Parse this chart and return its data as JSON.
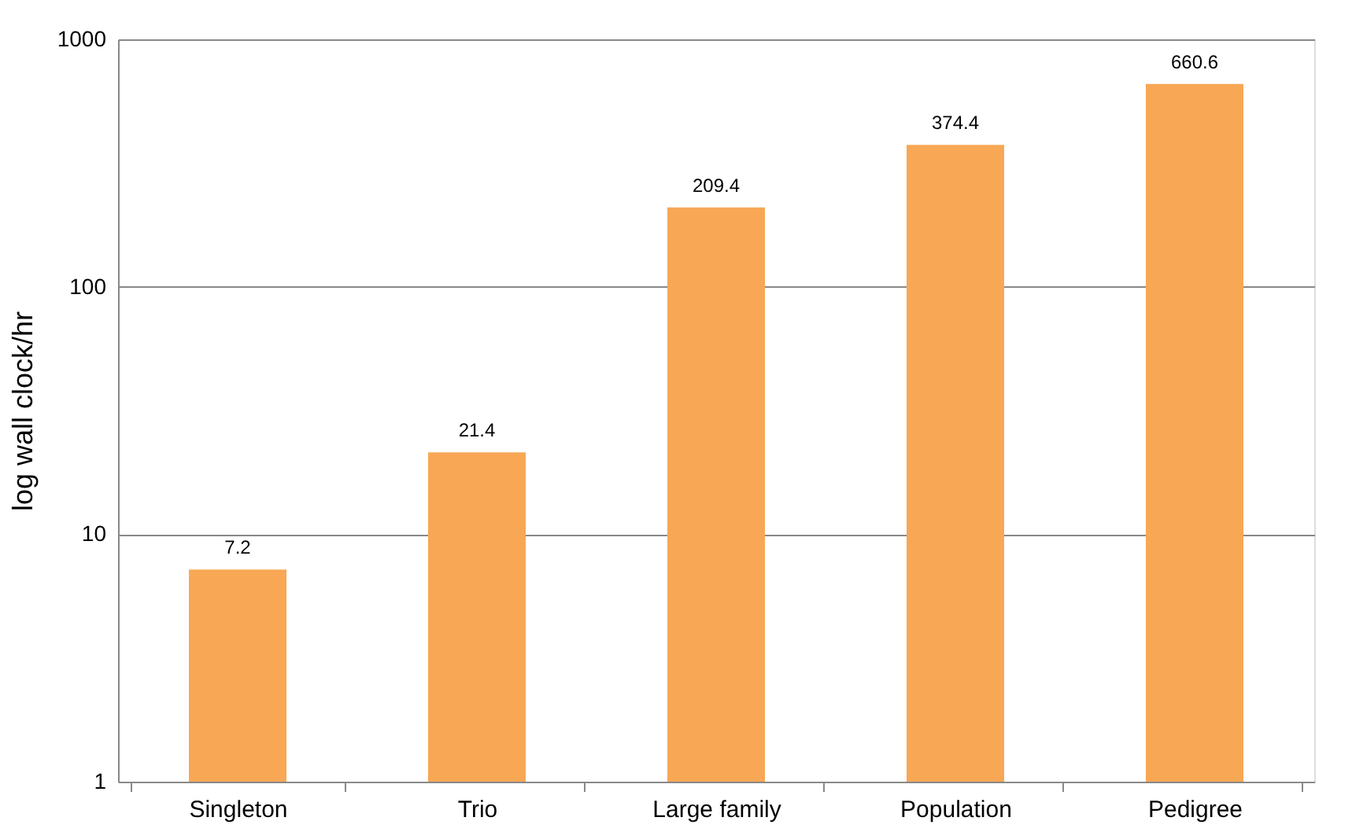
{
  "chart_data": {
    "type": "bar",
    "ylabel": "log wall clock/hr",
    "categories": [
      "Singleton",
      "Trio",
      "Large family",
      "Population",
      "Pedigree"
    ],
    "values": [
      7.2,
      21.4,
      209.4,
      374.4,
      660.6
    ],
    "color": "#f8a755",
    "log": true,
    "ylim": [
      1,
      1000
    ],
    "yticks": [
      1,
      10,
      100,
      1000
    ],
    "grid": "y",
    "data_labels": true
  }
}
